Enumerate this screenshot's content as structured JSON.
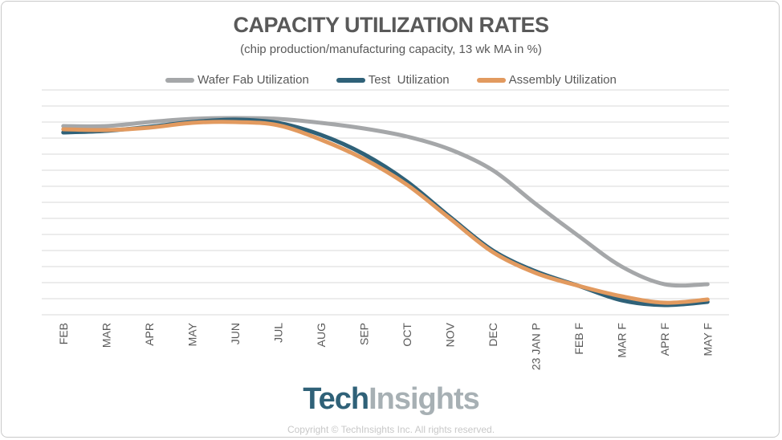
{
  "chart_data": {
    "type": "line",
    "title": "CAPACITY UTILIZATION RATES",
    "subtitle": "(chip production/manufacturing capacity, 13 wk MA in %)",
    "categories": [
      "FEB",
      "MAR",
      "APR",
      "MAY",
      "JUN",
      "JUL",
      "AUG",
      "SEP",
      "OCT",
      "NOV",
      "DEC",
      "23 JAN P",
      "FEB F",
      "MAR F",
      "APR F",
      "MAY F"
    ],
    "ylim": [
      0,
      14
    ],
    "y_axis_labels": "none",
    "grid": true,
    "legend_position": "top",
    "series": [
      {
        "name": "Wafer Fab Utilization",
        "color": "#a5a7a9",
        "values": [
          11.75,
          11.75,
          12.0,
          12.2,
          12.25,
          12.2,
          11.95,
          11.6,
          11.1,
          10.3,
          9.0,
          6.9,
          4.9,
          3.0,
          1.9,
          1.9
        ]
      },
      {
        "name": "Test  Utilization",
        "color": "#2f6178",
        "values": [
          11.35,
          11.45,
          11.7,
          12.0,
          12.15,
          11.95,
          11.2,
          10.0,
          8.3,
          6.1,
          4.0,
          2.7,
          1.8,
          0.9,
          0.6,
          0.8
        ]
      },
      {
        "name": "Assembly Utilization",
        "color": "#e29a5f",
        "values": [
          11.55,
          11.5,
          11.65,
          11.95,
          12.0,
          11.8,
          10.9,
          9.7,
          8.1,
          6.0,
          3.9,
          2.6,
          1.8,
          1.15,
          0.75,
          0.95
        ]
      }
    ]
  },
  "brand": {
    "tech": "Tech",
    "insights": "Insights"
  },
  "copyright": "Copyright © TechInsights Inc.  All rights reserved."
}
